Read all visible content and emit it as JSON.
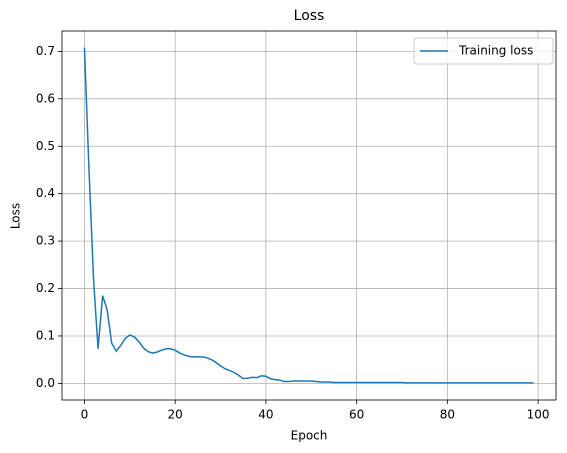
{
  "chart_data": {
    "type": "line",
    "title": "Loss",
    "xlabel": "Epoch",
    "ylabel": "Loss",
    "x": [
      0,
      1,
      2,
      3,
      4,
      5,
      6,
      7,
      8,
      9,
      10,
      11,
      12,
      13,
      14,
      15,
      16,
      17,
      18,
      19,
      20,
      21,
      22,
      23,
      24,
      25,
      26,
      27,
      28,
      29,
      30,
      31,
      32,
      33,
      34,
      35,
      36,
      37,
      38,
      39,
      40,
      41,
      42,
      43,
      44,
      45,
      46,
      47,
      48,
      49,
      50,
      51,
      52,
      53,
      54,
      55,
      56,
      57,
      58,
      59,
      60,
      61,
      62,
      63,
      64,
      65,
      66,
      67,
      68,
      69,
      70,
      71,
      72,
      73,
      74,
      75,
      76,
      77,
      78,
      79,
      80,
      81,
      82,
      83,
      84,
      85,
      86,
      87,
      88,
      89,
      90,
      91,
      92,
      93,
      94,
      95,
      96,
      97,
      98,
      99
    ],
    "series": [
      {
        "name": "Training loss",
        "color": "#1f77b4",
        "values": [
          0.708,
          0.45,
          0.22,
          0.073,
          0.185,
          0.155,
          0.085,
          0.068,
          0.08,
          0.095,
          0.102,
          0.098,
          0.088,
          0.075,
          0.067,
          0.064,
          0.066,
          0.07,
          0.073,
          0.073,
          0.07,
          0.064,
          0.06,
          0.057,
          0.056,
          0.056,
          0.056,
          0.054,
          0.05,
          0.044,
          0.037,
          0.031,
          0.027,
          0.023,
          0.017,
          0.01,
          0.011,
          0.013,
          0.012,
          0.016,
          0.015,
          0.01,
          0.008,
          0.007,
          0.004,
          0.004,
          0.005,
          0.005,
          0.005,
          0.005,
          0.005,
          0.004,
          0.003,
          0.003,
          0.003,
          0.002,
          0.002,
          0.002,
          0.002,
          0.002,
          0.002,
          0.002,
          0.002,
          0.002,
          0.002,
          0.002,
          0.002,
          0.002,
          0.002,
          0.002,
          0.002,
          0.001,
          0.001,
          0.001,
          0.001,
          0.001,
          0.001,
          0.001,
          0.001,
          0.001,
          0.001,
          0.001,
          0.001,
          0.001,
          0.001,
          0.001,
          0.001,
          0.001,
          0.001,
          0.001,
          0.001,
          0.001,
          0.001,
          0.001,
          0.001,
          0.001,
          0.001,
          0.001,
          0.001,
          0.001
        ]
      }
    ],
    "xlim": [
      -4.95,
      103.95
    ],
    "xticks": [
      0,
      20,
      40,
      60,
      80,
      100
    ],
    "ylim": [
      -0.035,
      0.743
    ],
    "yticks": [
      {
        "value": 0,
        "label": "0.0"
      },
      0.1,
      0.2,
      0.3,
      0.4,
      0.5,
      0.6,
      0.7
    ],
    "grid": true,
    "legend": "upper right"
  }
}
